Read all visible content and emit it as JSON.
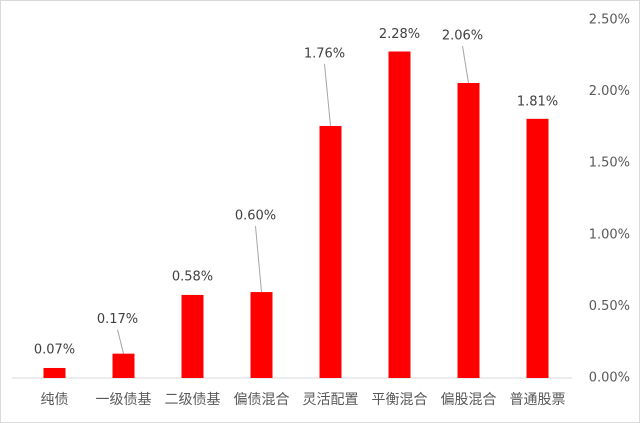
{
  "chart_data": {
    "type": "bar",
    "categories": [
      "纯债",
      "一级债基",
      "二级债基",
      "偏债混合",
      "灵活配置",
      "平衡混合",
      "偏股混合",
      "普通股票"
    ],
    "values": [
      0.07,
      0.17,
      0.58,
      0.6,
      1.76,
      2.28,
      2.06,
      1.81
    ],
    "value_labels": [
      "0.07%",
      "0.17%",
      "0.58%",
      "0.60%",
      "1.76%",
      "2.28%",
      "2.06%",
      "1.81%"
    ],
    "color": "#ff0000",
    "ylim": [
      0,
      2.5
    ],
    "yticks": [
      {
        "value": 0,
        "label": "0.00%"
      },
      {
        "value": 0.5,
        "label": "0.50%"
      },
      {
        "value": 1.0,
        "label": "1.00%"
      },
      {
        "value": 1.5,
        "label": "1.50%"
      },
      {
        "value": 2.0,
        "label": "2.00%"
      },
      {
        "value": 2.5,
        "label": "2.50%"
      }
    ],
    "grid": false
  }
}
